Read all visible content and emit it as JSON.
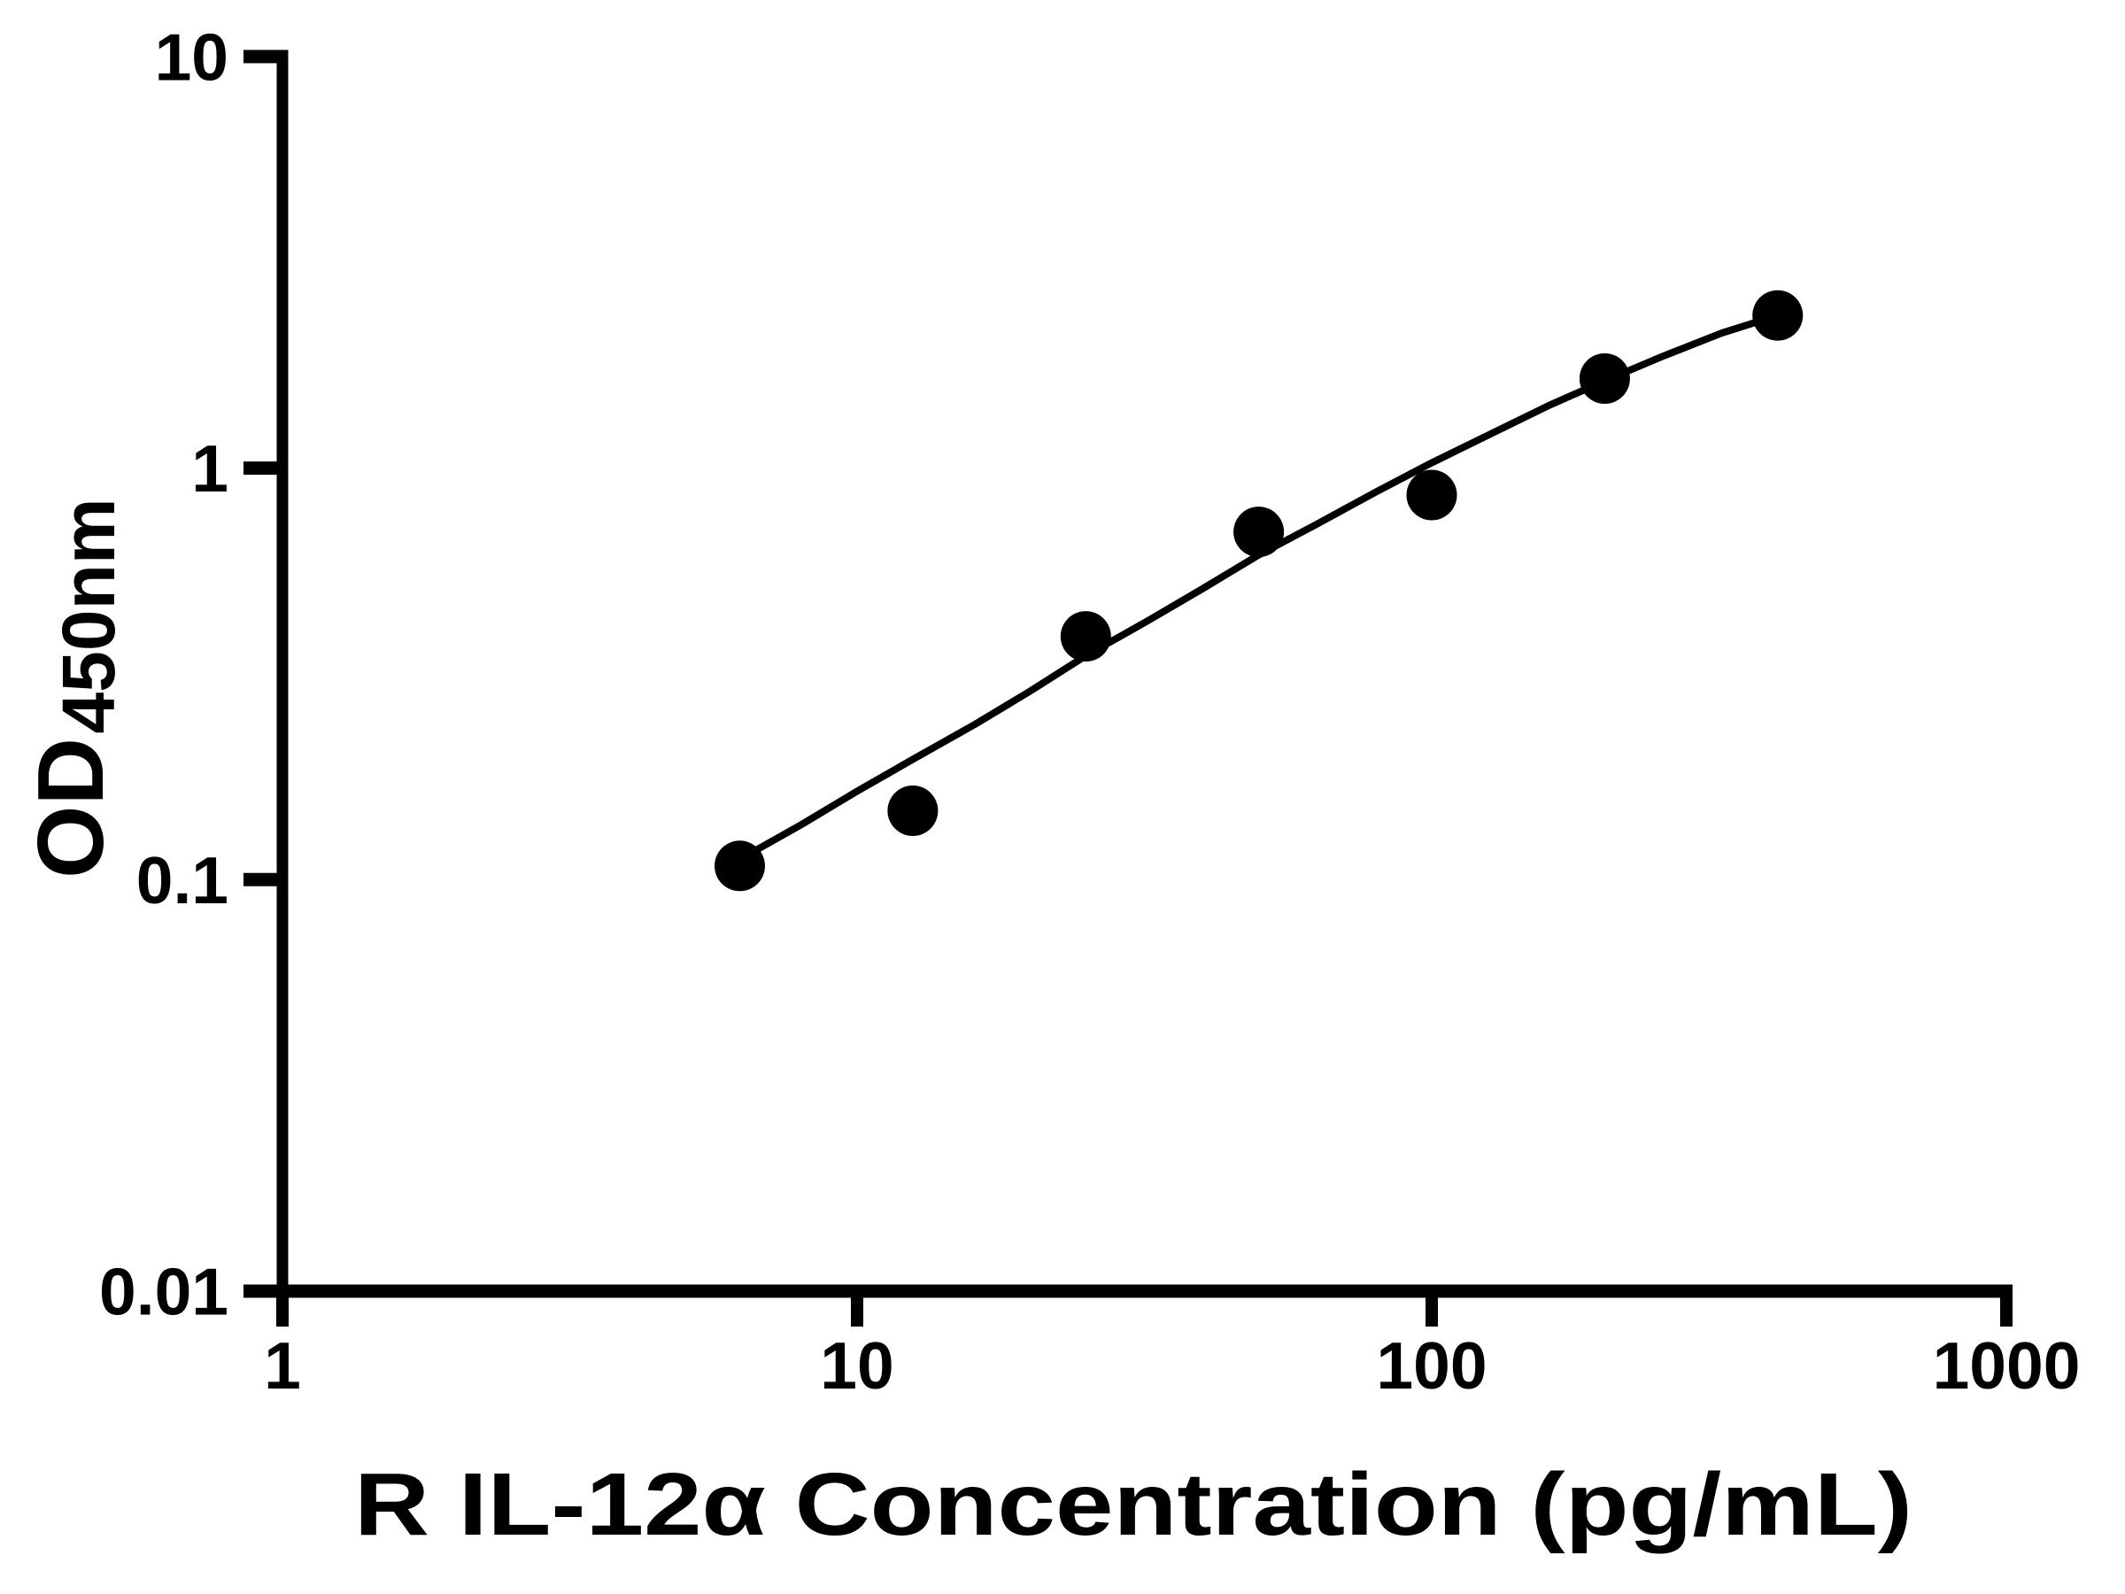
{
  "figure": {
    "background_color": "#ffffff",
    "ink_color": "#000000"
  },
  "chart_data": {
    "type": "scatter",
    "title": "",
    "xlabel": "R IL-12α Concentration (pg/mL)",
    "ylabel_main": "OD",
    "ylabel_sub": "450nm",
    "x_scale": "log",
    "y_scale": "log",
    "xlim": [
      1,
      1000
    ],
    "ylim": [
      0.01,
      10
    ],
    "x_ticks": [
      1,
      10,
      100,
      1000
    ],
    "x_tick_labels": [
      "1",
      "10",
      "100",
      "1000"
    ],
    "y_ticks": [
      10,
      1,
      0.1,
      0.01
    ],
    "y_tick_labels": [
      "10",
      "1",
      "0.1",
      "0.01"
    ],
    "grid": false,
    "legend_position": "none",
    "marker_color": "#000000",
    "line_color": "#000000",
    "series": [
      {
        "name": "standard-data-points",
        "type": "scatter",
        "points": [
          [
            6.25,
            0.108
          ],
          [
            12.5,
            0.147
          ],
          [
            25,
            0.39
          ],
          [
            50,
            0.7
          ],
          [
            100,
            0.86
          ],
          [
            200,
            1.65
          ],
          [
            400,
            2.35
          ]
        ]
      },
      {
        "name": "fit-curve",
        "type": "line",
        "points": [
          [
            6.25,
            0.112
          ],
          [
            8,
            0.136
          ],
          [
            10,
            0.164
          ],
          [
            12.5,
            0.196
          ],
          [
            16,
            0.238
          ],
          [
            20,
            0.287
          ],
          [
            25,
            0.35
          ],
          [
            32,
            0.425
          ],
          [
            40,
            0.51
          ],
          [
            50,
            0.615
          ],
          [
            63,
            0.73
          ],
          [
            80,
            0.875
          ],
          [
            100,
            1.03
          ],
          [
            125,
            1.2
          ],
          [
            160,
            1.42
          ],
          [
            200,
            1.63
          ],
          [
            250,
            1.86
          ],
          [
            320,
            2.13
          ],
          [
            400,
            2.35
          ]
        ]
      }
    ]
  }
}
